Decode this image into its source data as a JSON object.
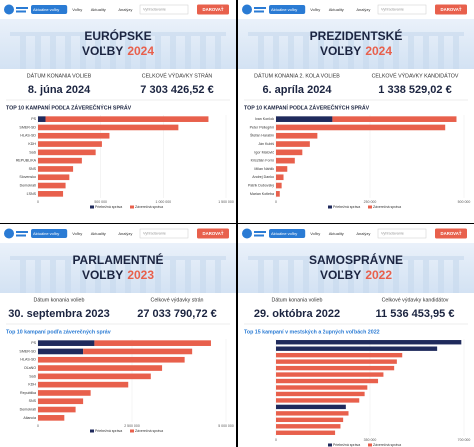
{
  "panels": [
    {
      "nav": {
        "items": [
          "Aktuálne voľby",
          "Voľby",
          "Aktuality",
          "Analýzy"
        ],
        "search": "Vyhľadávanie",
        "button": "DAROVAŤ"
      },
      "hero": {
        "line1": "EURÓPSKE",
        "line2": "VOĽBY",
        "year": "2024"
      },
      "stats": [
        {
          "label": "DÁTUM KONANIA VOLIEB",
          "value": "8. júna 2024"
        },
        {
          "label": "CELKOVÉ VÝDAVKY STRÁN",
          "value": "7 303 426,52 €"
        }
      ],
      "chart": {
        "type": "bar",
        "title": "TOP 10 KAMPANÍ PODĽA ZÁVEREČNÝCH SPRÁV",
        "title_color": "#1b2440",
        "categories": [
          "PS",
          "SMER-SD",
          "HLAS-SD",
          "KDH",
          "SaS",
          "REPUBLIKA",
          "SNS",
          "Slovensko",
          "Demokrati",
          "ĽSNS"
        ],
        "series": [
          {
            "name": "Priebežná správa",
            "color": "#1f2a5c",
            "values": [
              60000,
              0,
              0,
              0,
              0,
              0,
              0,
              0,
              0,
              0
            ]
          },
          {
            "name": "Záverečná správa",
            "color": "#e8604c",
            "values": [
              1300000,
              1120000,
              570000,
              510000,
              460000,
              350000,
              280000,
              250000,
              220000,
              200000
            ]
          }
        ],
        "xlim": [
          0,
          1500000
        ],
        "xticks": [
          {
            "value": 0,
            "label": "0"
          },
          {
            "value": 500000,
            "label": "500 000"
          },
          {
            "value": 1000000,
            "label": "1 000 000"
          },
          {
            "value": 1500000,
            "label": "1 500 000"
          }
        ]
      }
    },
    {
      "nav": {
        "items": [
          "Aktuálne voľby",
          "Voľby",
          "Aktuality",
          "Analýzy"
        ],
        "search": "Vyhľadávanie",
        "button": "DAROVAŤ"
      },
      "hero": {
        "line1": "PREZIDENTSKÉ",
        "line2": "VOĽBY",
        "year": "2024"
      },
      "stats": [
        {
          "label": "DÁTUM KONANIA 2. KOLA VOLIEB",
          "value": "6. apríla 2024"
        },
        {
          "label": "CELKOVÉ VÝDAVKY KANDIDÁTOV",
          "value": "1 338 529,02 €"
        }
      ],
      "chart": {
        "type": "bar",
        "title": "TOP 10 KAMPANÍ PODĽA ZÁVEREČNÝCH SPRÁV",
        "title_color": "#1b2440",
        "categories": [
          "Ivan Korčok",
          "Peter Pellegrini",
          "Štefan Harabin",
          "Ján Kubiš",
          "Igor Matovič",
          "Krisztián Forró",
          "Milan Náhlik",
          "Andrej Danko",
          "Patrik Dubovský",
          "Marian Kotleba"
        ],
        "series": [
          {
            "name": "Priebežná správa",
            "color": "#1f2a5c",
            "values": [
              150000,
              0,
              0,
              0,
              0,
              0,
              0,
              0,
              0,
              0
            ]
          },
          {
            "name": "Záverečná správa",
            "color": "#e8604c",
            "values": [
              330000,
              450000,
              110000,
              90000,
              70000,
              50000,
              30000,
              20000,
              15000,
              10000
            ]
          }
        ],
        "xlim": [
          0,
          500000
        ],
        "xticks": [
          {
            "value": 0,
            "label": "0"
          },
          {
            "value": 250000,
            "label": "250 000"
          },
          {
            "value": 500000,
            "label": "500 000"
          }
        ]
      }
    },
    {
      "nav": {
        "items": [
          "Aktuálne voľby",
          "Voľby",
          "Aktuality",
          "Analýzy"
        ],
        "search": "Vyhľadávanie",
        "button": "DAROVAŤ"
      },
      "hero": {
        "line1": "PARLAMENTNÉ",
        "line2": "VOĽBY",
        "year": "2023"
      },
      "stats": [
        {
          "label": "Dátum konania volieb",
          "value": "30. septembra 2023"
        },
        {
          "label": "Celkové výdavky strán",
          "value": "27 033 790,72 €"
        }
      ],
      "chart": {
        "type": "bar",
        "title": "Top 10 kampaní podľa záverečných správ",
        "title_color": "#2a7bd4",
        "categories": [
          "PS",
          "SMER-SD",
          "HLAS-SD",
          "OĽaNO",
          "SaS",
          "KDH",
          "Republika",
          "SNS",
          "Demokrati",
          "Aliancia"
        ],
        "series": [
          {
            "name": "Priebežná správa",
            "color": "#1f2a5c",
            "values": [
              1500000,
              1200000,
              0,
              0,
              0,
              0,
              0,
              0,
              0,
              0
            ]
          },
          {
            "name": "Záverečná správa",
            "color": "#e8604c",
            "values": [
              3100000,
              2900000,
              3900000,
              3300000,
              3000000,
              2400000,
              1400000,
              1200000,
              1000000,
              700000
            ]
          }
        ],
        "xlim": [
          0,
          5000000
        ],
        "xticks": [
          {
            "value": 0,
            "label": "0"
          },
          {
            "value": 2500000,
            "label": "2 500 000"
          },
          {
            "value": 5000000,
            "label": "5 000 000"
          }
        ]
      }
    },
    {
      "nav": {
        "items": [
          "Aktuálne voľby",
          "Voľby",
          "Aktuality",
          "Analýzy"
        ],
        "search": "Vyhľadávanie",
        "button": "DAROVAŤ"
      },
      "hero": {
        "line1": "SAMOSPRÁVNE",
        "line2": "VOĽBY",
        "year": "2022"
      },
      "stats": [
        {
          "label": "Dátum konania volieb",
          "value": "29. októbra 2022"
        },
        {
          "label": "Celkové výdavky kandidátov",
          "value": "11 536 453,95 €"
        }
      ],
      "chart": {
        "type": "bar",
        "title": "Top 15 kampaní v mestských a župných voľbách 2022",
        "title_color": "#2a7bd4",
        "categories": [
          null,
          null,
          null,
          null,
          null,
          null,
          null,
          null,
          null,
          null,
          null,
          null,
          null,
          null,
          null
        ],
        "series": [
          {
            "name": "Priebežná správa",
            "color": "#1f2a5c",
            "values": [
              690000,
              600000,
              0,
              0,
              0,
              0,
              0,
              0,
              0,
              0,
              260000,
              0,
              0,
              0,
              0
            ]
          },
          {
            "name": "Záverečná správa",
            "color": "#e8604c",
            "values": [
              0,
              0,
              470000,
              450000,
              440000,
              400000,
              380000,
              340000,
              330000,
              310000,
              0,
              270000,
              250000,
              240000,
              220000
            ]
          }
        ],
        "xlim": [
          0,
          700000
        ],
        "xticks": [
          {
            "value": 0,
            "label": "0"
          },
          {
            "value": 350000,
            "label": "350 000"
          },
          {
            "value": 700000,
            "label": "700 000"
          }
        ]
      }
    }
  ]
}
